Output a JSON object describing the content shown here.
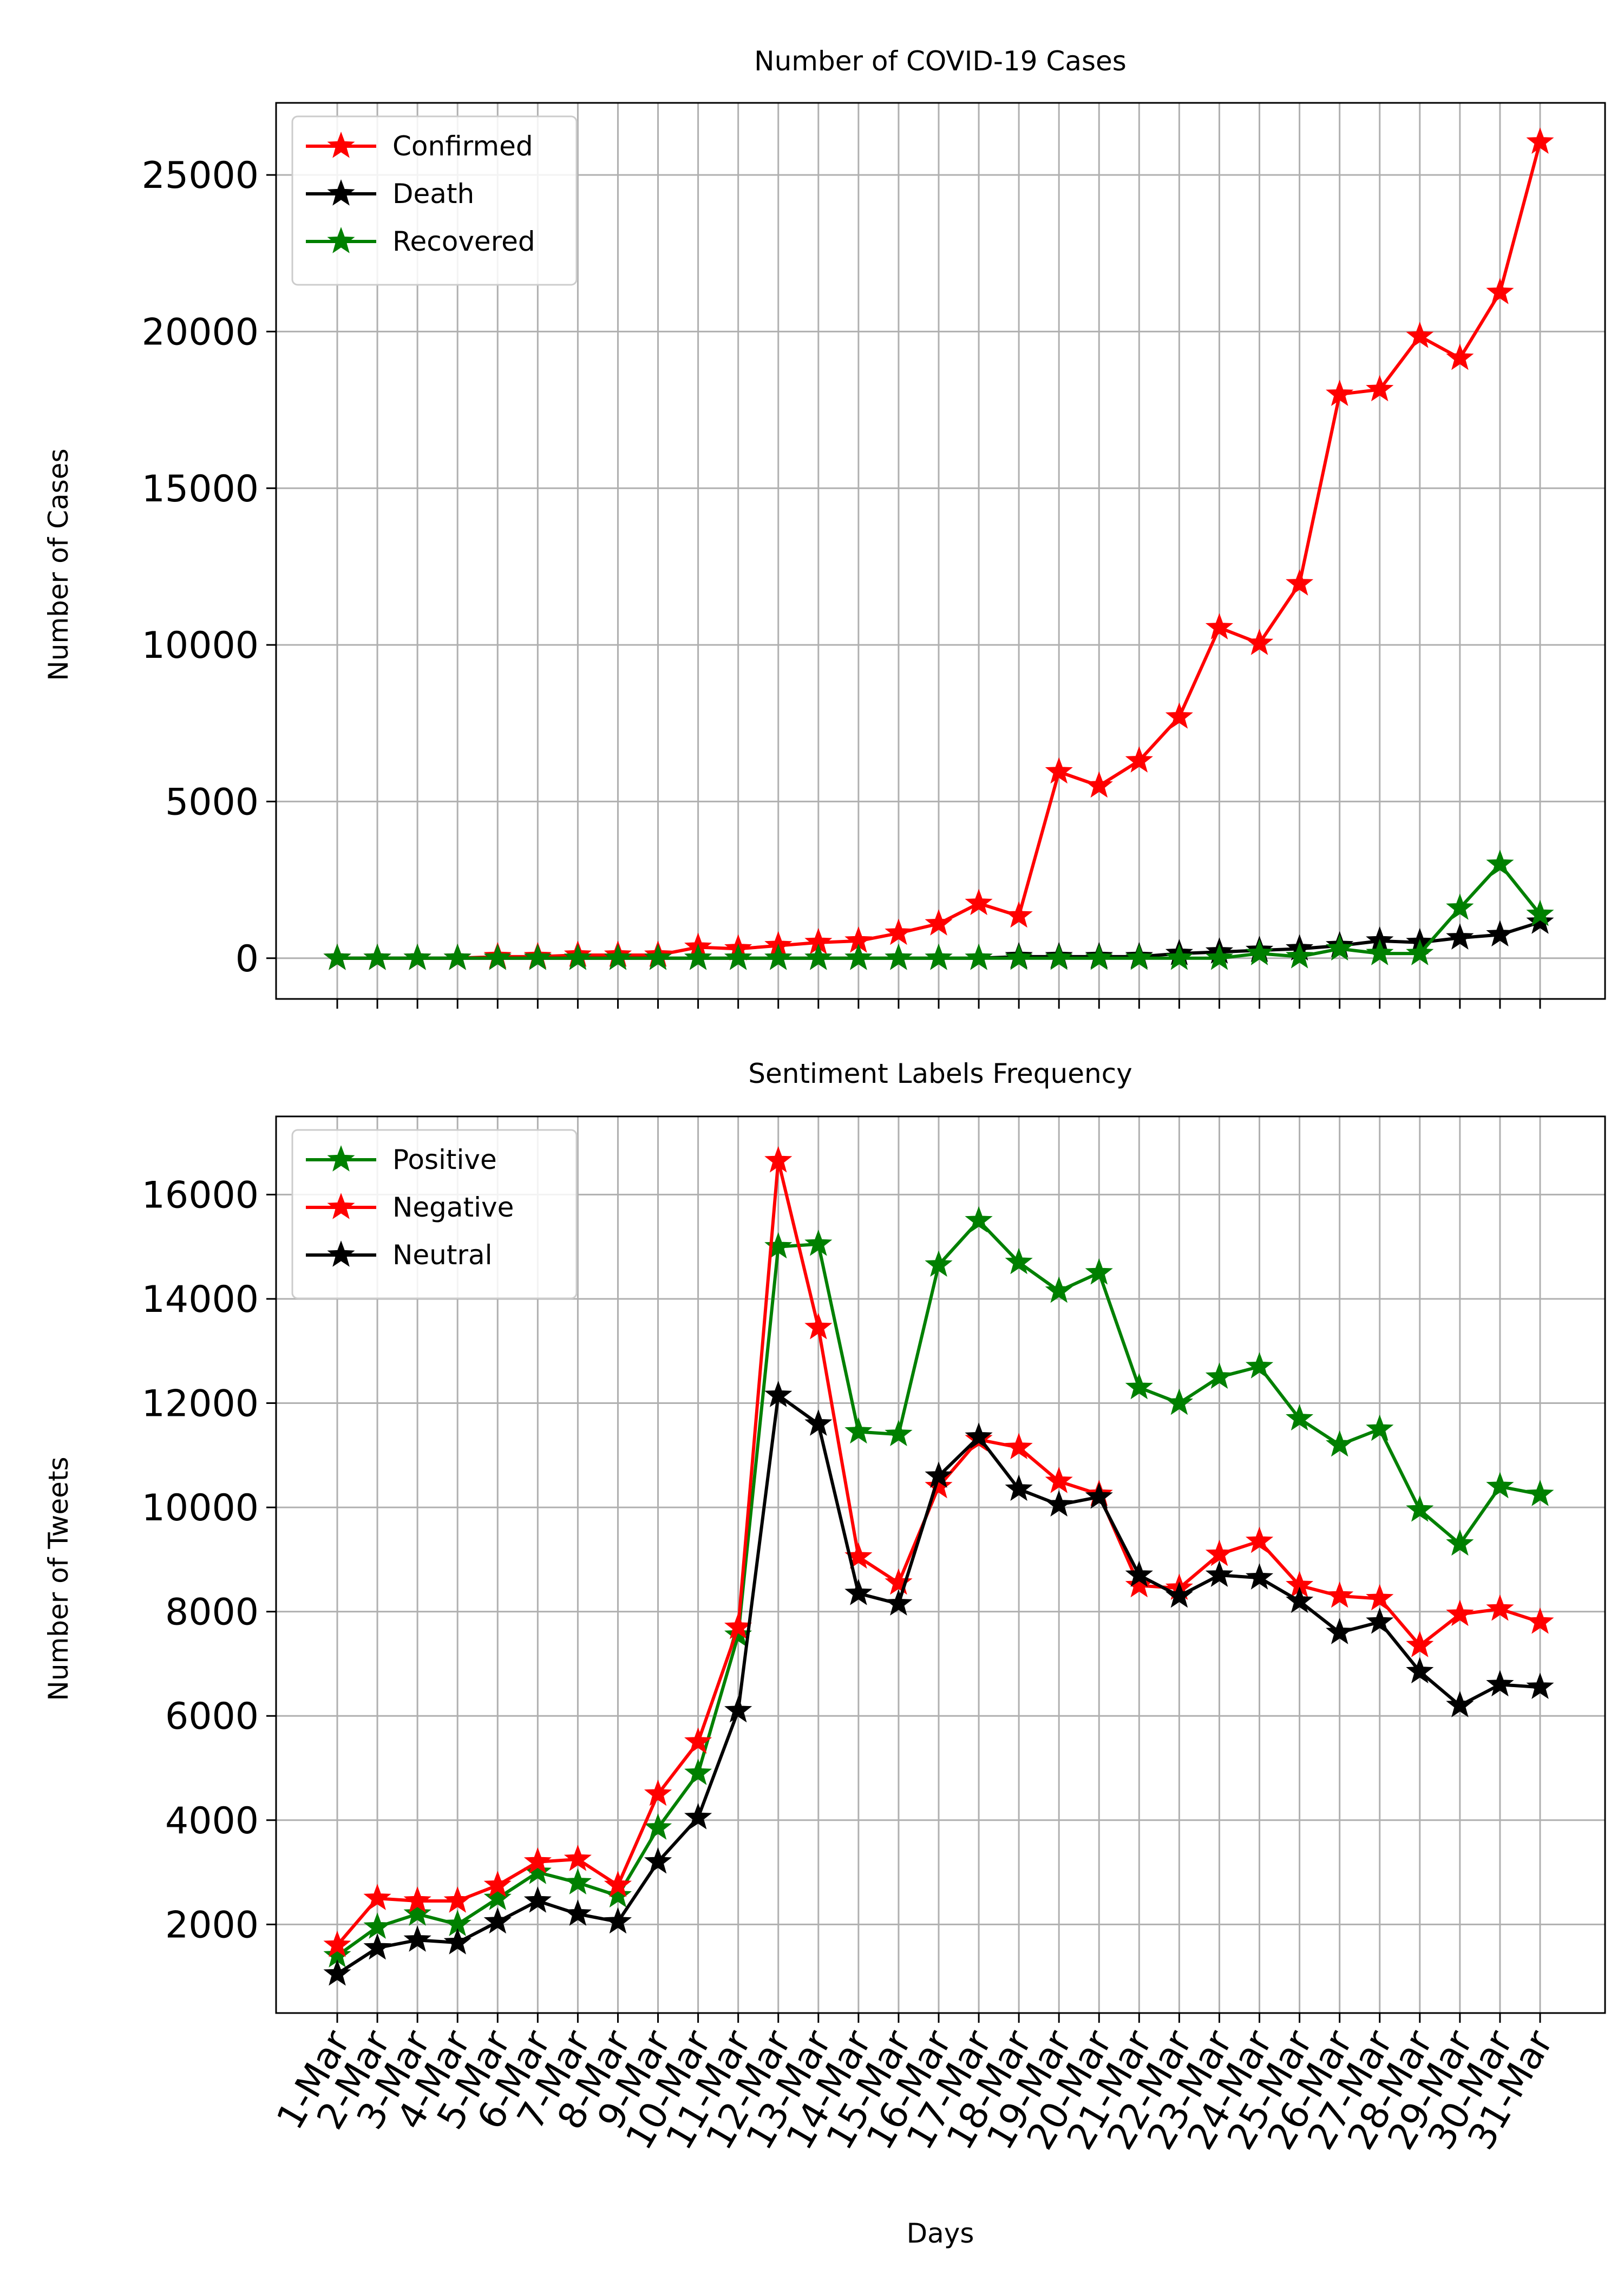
{
  "x_days": [
    "1-Mar",
    "2-Mar",
    "3-Mar",
    "4-Mar",
    "5-Mar",
    "6-Mar",
    "7-Mar",
    "8-Mar",
    "9-Mar",
    "10-Mar",
    "11-Mar",
    "12-Mar",
    "13-Mar",
    "14-Mar",
    "15-Mar",
    "16-Mar",
    "17-Mar",
    "18-Mar",
    "19-Mar",
    "20-Mar",
    "21-Mar",
    "22-Mar",
    "23-Mar",
    "24-Mar",
    "25-Mar",
    "26-Mar",
    "27-Mar",
    "28-Mar",
    "29-Mar",
    "30-Mar",
    "31-Mar"
  ],
  "chart_data": [
    {
      "type": "line",
      "title": "Number of COVID-19 Cases",
      "xlabel": "",
      "ylabel": "Number of Cases",
      "ylim": [
        -1300,
        27300
      ],
      "yticks": [
        0,
        5000,
        10000,
        15000,
        20000,
        25000
      ],
      "grid": true,
      "legend": "top-left",
      "marker": "star",
      "series": [
        {
          "name": "Confirmed",
          "color": "#ff0000",
          "values": [
            0,
            0,
            0,
            0,
            50,
            50,
            100,
            100,
            100,
            350,
            300,
            400,
            500,
            550,
            800,
            1100,
            1750,
            1350,
            5950,
            5500,
            6300,
            7700,
            10550,
            10050,
            11950,
            18000,
            18150,
            19850,
            19150,
            21250,
            26050
          ]
        },
        {
          "name": "Death",
          "color": "#000000",
          "values": [
            0,
            0,
            0,
            0,
            0,
            0,
            0,
            0,
            0,
            0,
            0,
            0,
            0,
            0,
            0,
            0,
            0,
            50,
            50,
            50,
            50,
            150,
            200,
            250,
            300,
            400,
            550,
            500,
            650,
            750,
            1150
          ]
        },
        {
          "name": "Recovered",
          "color": "#008000",
          "values": [
            0,
            0,
            0,
            0,
            0,
            0,
            0,
            0,
            0,
            0,
            0,
            0,
            0,
            0,
            0,
            0,
            0,
            0,
            0,
            0,
            0,
            0,
            0,
            150,
            50,
            300,
            150,
            150,
            1600,
            3000,
            1400
          ]
        }
      ]
    },
    {
      "type": "line",
      "title": "Sentiment Labels Frequency",
      "xlabel": "Days",
      "ylabel": "Number of Tweets",
      "ylim": [
        300,
        17500
      ],
      "yticks": [
        2000,
        4000,
        6000,
        8000,
        10000,
        12000,
        14000,
        16000
      ],
      "grid": true,
      "legend": "top-left",
      "marker": "star",
      "series": [
        {
          "name": "Positive",
          "color": "#008000",
          "values": [
            1400,
            1950,
            2200,
            2000,
            2500,
            3000,
            2800,
            2550,
            3850,
            4900,
            7550,
            15000,
            15050,
            11450,
            11400,
            14650,
            15500,
            14700,
            14150,
            14500,
            12300,
            12000,
            12500,
            12700,
            11700,
            11200,
            11500,
            9950,
            9300,
            10400,
            10250
          ]
        },
        {
          "name": "Negative",
          "color": "#ff0000",
          "values": [
            1600,
            2500,
            2450,
            2450,
            2750,
            3200,
            3250,
            2750,
            4500,
            5500,
            7700,
            16650,
            13450,
            9050,
            8550,
            10400,
            11300,
            11150,
            10500,
            10250,
            8500,
            8450,
            9100,
            9350,
            8500,
            8300,
            8250,
            7350,
            7950,
            8050,
            7800
          ]
        },
        {
          "name": "Neutral",
          "color": "#000000",
          "values": [
            1050,
            1550,
            1700,
            1650,
            2050,
            2450,
            2200,
            2050,
            3200,
            4050,
            6100,
            12150,
            11600,
            8350,
            8150,
            10600,
            11350,
            10350,
            10050,
            10200,
            8700,
            8300,
            8700,
            8650,
            8200,
            7600,
            7800,
            6850,
            6200,
            6600,
            6550
          ]
        }
      ]
    }
  ]
}
